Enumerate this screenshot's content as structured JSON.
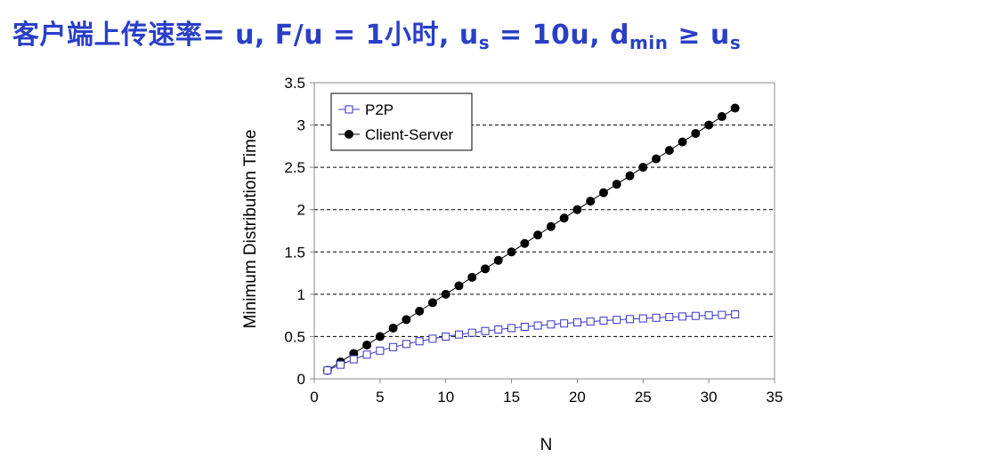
{
  "title": {
    "prefix": "客户端上传速率= u, F/u = 1小时, u",
    "sub1": "s",
    "mid1": " = 10u, d",
    "sub2": "min",
    "mid2": " ≥ u",
    "sub3": "s"
  },
  "chart_data": {
    "type": "line",
    "xlabel": "N",
    "ylabel": "Minimum Distribution Time",
    "xlim": [
      0,
      35
    ],
    "ylim": [
      0,
      3.5
    ],
    "xticks": [
      "0",
      "5",
      "10",
      "15",
      "20",
      "25",
      "30",
      "35"
    ],
    "yticks": [
      "0",
      "0.5",
      "1",
      "1.5",
      "2",
      "2.5",
      "3",
      "3.5"
    ],
    "grid": "horizontal-dashed",
    "legend_position": "top-left",
    "x": [
      1,
      2,
      3,
      4,
      5,
      6,
      7,
      8,
      9,
      10,
      11,
      12,
      13,
      14,
      15,
      16,
      17,
      18,
      19,
      20,
      21,
      22,
      23,
      24,
      25,
      26,
      27,
      28,
      29,
      30,
      31,
      32
    ],
    "series": [
      {
        "name": "P2P",
        "marker": "open-square",
        "color": "#3333cc",
        "values": [
          0.1,
          0.167,
          0.231,
          0.286,
          0.333,
          0.375,
          0.412,
          0.444,
          0.474,
          0.5,
          0.524,
          0.545,
          0.565,
          0.583,
          0.6,
          0.615,
          0.63,
          0.643,
          0.655,
          0.667,
          0.677,
          0.688,
          0.697,
          0.706,
          0.714,
          0.722,
          0.73,
          0.737,
          0.744,
          0.75,
          0.756,
          0.762
        ]
      },
      {
        "name": "Client-Server",
        "marker": "filled-circle",
        "color": "#000000",
        "values": [
          0.1,
          0.2,
          0.3,
          0.4,
          0.5,
          0.6,
          0.7,
          0.8,
          0.9,
          1.0,
          1.1,
          1.2,
          1.3,
          1.4,
          1.5,
          1.6,
          1.7,
          1.8,
          1.9,
          2.0,
          2.1,
          2.2,
          2.3,
          2.4,
          2.5,
          2.6,
          2.7,
          2.8,
          2.9,
          3.0,
          3.1,
          3.2
        ]
      }
    ]
  }
}
